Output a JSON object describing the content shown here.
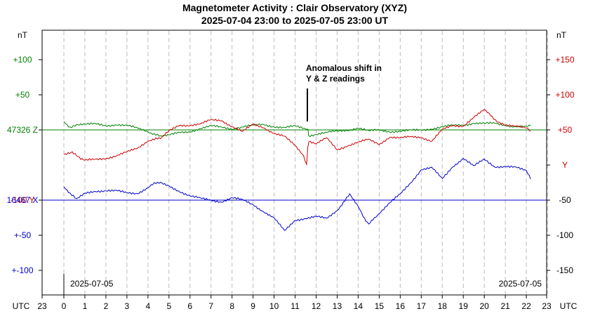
{
  "chart_data": {
    "type": "line",
    "title": "Magnetometer Activity : Clair Observatory (XYZ)",
    "subtitle": "2025-07-04 23:00 to 2025-07-05 23:00 UT",
    "left_unit": "nT",
    "right_unit": "nT",
    "left_ticks": [
      {
        "label": "+100",
        "color": "#008000",
        "kind": "z",
        "value": 100
      },
      {
        "label": "+50",
        "color": "#008000",
        "kind": "z",
        "value": 50
      },
      {
        "label": "47326 Z",
        "color": "#008000",
        "kind": "z",
        "value": 0
      },
      {
        "label": "-100  Y",
        "color": "#cc0000",
        "kind": "y",
        "value": -100
      },
      {
        "label": "16467 X",
        "color": "#0000cc",
        "kind": "x",
        "value": 0
      },
      {
        "label": "+-50",
        "color": "#0000cc",
        "kind": "x",
        "value": -50
      },
      {
        "label": "+-100",
        "color": "#0000cc",
        "kind": "x",
        "value": -100
      }
    ],
    "right_ticks": [
      {
        "label": "+150",
        "color": "#cc0000",
        "value": 150
      },
      {
        "label": "+100",
        "color": "#cc0000",
        "value": 100
      },
      {
        "label": "+50",
        "color": "#cc0000",
        "value": 50
      },
      {
        "label": "Y",
        "color": "#cc0000",
        "value": 0
      },
      {
        "label": "-50",
        "color": "#000000",
        "value": -50
      },
      {
        "label": "-100",
        "color": "#000000",
        "value": -100
      },
      {
        "label": "-150",
        "color": "#000000",
        "value": -150
      }
    ],
    "x_label_left": "UTC",
    "x_label_right": "UTC",
    "x_ticks": [
      "23",
      "0",
      "1",
      "2",
      "3",
      "4",
      "5",
      "6",
      "7",
      "8",
      "9",
      "10",
      "11",
      "12",
      "13",
      "14",
      "15",
      "16",
      "17",
      "18",
      "19",
      "20",
      "21",
      "22",
      "23"
    ],
    "date_label_left": "2025-07-05",
    "date_label_right": "2025-07-05",
    "annotation": {
      "line1": "Anomalous shift in",
      "line2": "Y & Z readings",
      "hour": 11.6
    },
    "baselines": [
      {
        "name": "Z baseline",
        "color": "#008000",
        "value": 0,
        "axis": "z"
      },
      {
        "name": "Y baseline",
        "color": "#cc0000",
        "value": -100,
        "axis": "z"
      },
      {
        "name": "X baseline",
        "color": "#0000cc",
        "value": 0,
        "axis": "x"
      }
    ],
    "ylim_left": [
      -150,
      150
    ],
    "ylim_right": [
      -180,
      180
    ],
    "x_range_hours": [
      0,
      24
    ],
    "series": [
      {
        "name": "Z",
        "color": "#008000",
        "axis": "z",
        "hours": [
          0,
          0.3,
          0.6,
          1,
          1.5,
          2,
          2.5,
          3,
          3.5,
          4,
          4.3,
          4.6,
          5,
          5.5,
          6,
          6.5,
          7,
          7.5,
          8,
          8.5,
          9,
          9.5,
          10,
          10.5,
          11,
          11.5,
          11.6,
          11.65,
          12,
          12.5,
          13,
          13.5,
          14,
          14.5,
          15,
          15.5,
          16,
          16.5,
          17,
          17.5,
          18,
          18.5,
          19,
          19.5,
          20,
          20.5,
          21,
          21.5,
          22,
          22.2
        ],
        "values": [
          12,
          4,
          6,
          8,
          8,
          6,
          8,
          6,
          2,
          -2,
          -6,
          -10,
          -8,
          -4,
          -2,
          2,
          5,
          4,
          2,
          4,
          6,
          8,
          5,
          3,
          5,
          2,
          0,
          -8,
          -6,
          -4,
          -2,
          0,
          3,
          -2,
          0,
          -2,
          -2,
          -1,
          0,
          2,
          4,
          6,
          7,
          10,
          9,
          9,
          7,
          5,
          4,
          6
        ]
      },
      {
        "name": "Y",
        "color": "#cc0000",
        "axis": "right",
        "hours": [
          0,
          0.4,
          0.8,
          1,
          1.5,
          2,
          2.5,
          3,
          3.5,
          4,
          4.3,
          4.6,
          5,
          5.5,
          6,
          6.5,
          7,
          7.5,
          8,
          8.5,
          9,
          9.5,
          10,
          10.5,
          11,
          11.4,
          11.55,
          11.6,
          11.65,
          12,
          12.5,
          13,
          13.5,
          14,
          14.5,
          15,
          15.5,
          16,
          16.5,
          17,
          17.5,
          18,
          18.5,
          19,
          19.5,
          20,
          20.3,
          20.6,
          21,
          21.5,
          22,
          22.2
        ],
        "values": [
          16,
          18,
          8,
          6,
          8,
          10,
          13,
          18,
          24,
          35,
          36,
          38,
          48,
          57,
          57,
          58,
          64,
          64,
          55,
          47,
          58,
          54,
          45,
          40,
          28,
          12,
          0,
          25,
          34,
          30,
          38,
          22,
          28,
          32,
          36,
          30,
          40,
          38,
          40,
          40,
          34,
          50,
          56,
          56,
          68,
          78,
          72,
          62,
          58,
          55,
          52,
          48
        ]
      },
      {
        "name": "X",
        "color": "#0000cc",
        "axis": "x",
        "hours": [
          0,
          0.3,
          0.6,
          1,
          1.5,
          2,
          2.5,
          3,
          3.5,
          4,
          4.3,
          4.6,
          5,
          5.5,
          6,
          6.5,
          7,
          7.5,
          8,
          8.5,
          9,
          9.5,
          10,
          10.5,
          11,
          11.5,
          12,
          12.5,
          13,
          13.3,
          13.6,
          14,
          14.3,
          14.5,
          14.7,
          15,
          15.5,
          16,
          16.5,
          17,
          17.5,
          18,
          18.5,
          19,
          19.5,
          20,
          20.5,
          21,
          21.5,
          22,
          22.2
        ],
        "values": [
          20,
          8,
          2,
          9,
          13,
          14,
          13,
          10,
          10,
          18,
          23,
          26,
          20,
          13,
          6,
          2,
          0,
          -2,
          3,
          0,
          -6,
          -16,
          -26,
          -44,
          -28,
          -26,
          -24,
          -26,
          -14,
          -4,
          8,
          -10,
          -26,
          -34,
          -28,
          -18,
          -4,
          8,
          25,
          44,
          46,
          30,
          48,
          60,
          48,
          58,
          48,
          48,
          46,
          42,
          30
        ]
      }
    ]
  }
}
